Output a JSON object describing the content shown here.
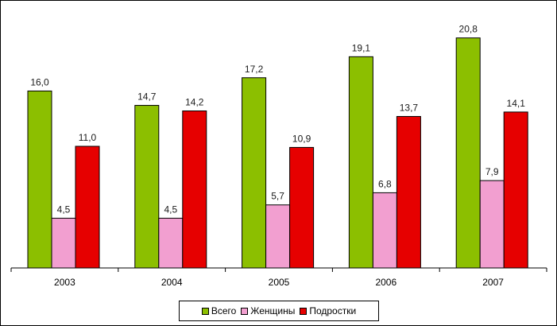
{
  "chart_data": {
    "type": "bar",
    "categories": [
      "2003",
      "2004",
      "2005",
      "2006",
      "2007"
    ],
    "series": [
      {
        "name": "Всего",
        "color": "#8cbf00",
        "values": [
          16.0,
          14.7,
          17.2,
          19.1,
          20.8
        ],
        "labels": [
          "16,0",
          "14,7",
          "17,2",
          "19,1",
          "20,8"
        ]
      },
      {
        "name": "Женщины",
        "color": "#f29fd0",
        "values": [
          4.5,
          4.5,
          5.7,
          6.8,
          7.9
        ],
        "labels": [
          "4,5",
          "4,5",
          "5,7",
          "6,8",
          "7,9"
        ]
      },
      {
        "name": "Подростки",
        "color": "#e60000",
        "values": [
          11.0,
          14.2,
          10.9,
          13.7,
          14.1
        ],
        "labels": [
          "11,0",
          "14,2",
          "10,9",
          "13,7",
          "14,1"
        ]
      }
    ],
    "ylim": [
      0,
      22
    ],
    "title": "",
    "xlabel": "",
    "ylabel": "",
    "grid": false,
    "legend_position": "bottom"
  }
}
